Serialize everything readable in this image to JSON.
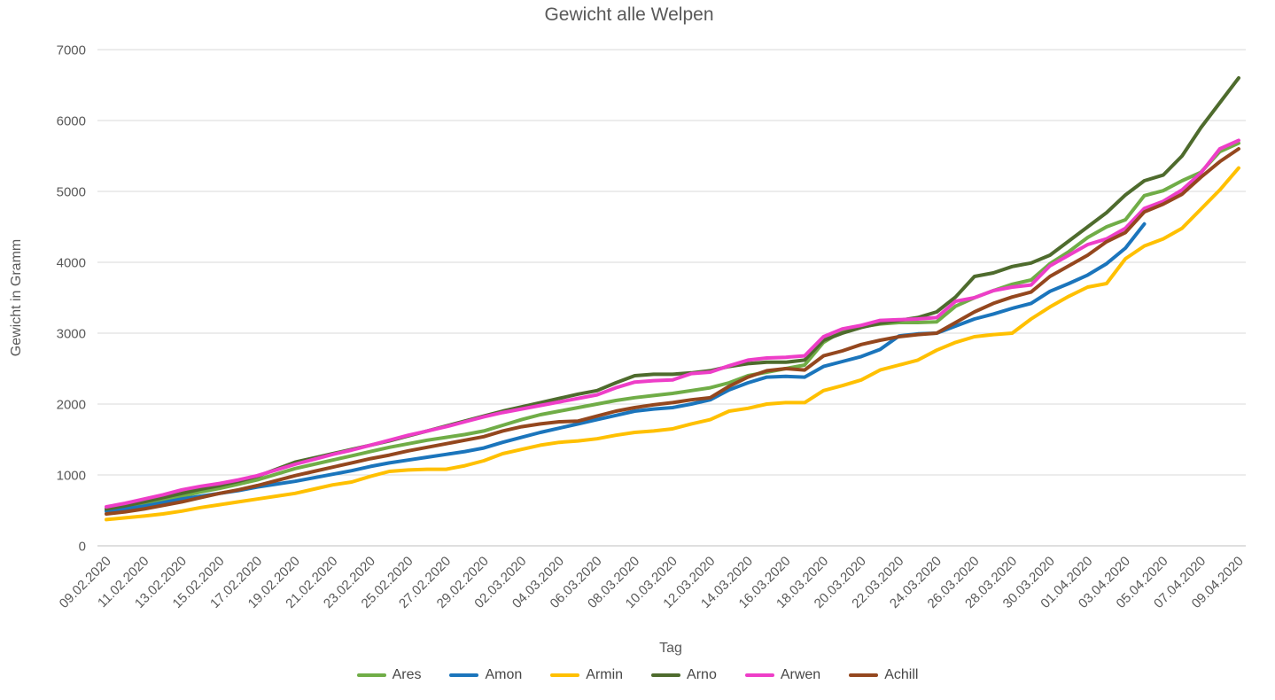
{
  "chart_data": {
    "type": "line",
    "title": "Gewicht alle Welpen",
    "xlabel": "Tag",
    "ylabel": "Gewicht in Gramm",
    "ylim": [
      0,
      7000
    ],
    "grid": "horizontal",
    "legend_position": "bottom",
    "background_color": "#FFFFFF",
    "grid_color": "#D9D9D9",
    "axis_color": "#BFBFBF",
    "text_color": "#595959",
    "y_ticks": [
      {
        "value": 0,
        "label": "0"
      },
      {
        "value": 1000,
        "label": "1000"
      },
      {
        "value": 2000,
        "label": "2000"
      },
      {
        "value": 3000,
        "label": "3000"
      },
      {
        "value": 4000,
        "label": "4000"
      },
      {
        "value": 5000,
        "label": "5000"
      },
      {
        "value": 6000,
        "label": "6000"
      },
      {
        "value": 7000,
        "label": "7000"
      }
    ],
    "x_tick_labels": [
      "09.02.2020",
      "11.02.2020",
      "13.02.2020",
      "15.02.2020",
      "17.02.2020",
      "19.02.2020",
      "21.02.2020",
      "23.02.2020",
      "25.02.2020",
      "27.02.2020",
      "29.02.2020",
      "02.03.2020",
      "04.03.2020",
      "06.03.2020",
      "08.03.2020",
      "10.03.2020",
      "12.03.2020",
      "14.03.2020",
      "16.03.2020",
      "18.03.2020",
      "20.03.2020",
      "22.03.2020",
      "24.03.2020",
      "26.03.2020",
      "28.03.2020",
      "30.03.2020",
      "01.04.2020",
      "03.04.2020",
      "05.04.2020",
      "07.04.2020",
      "09.04.2020"
    ],
    "categories": [
      "09.02.2020",
      "10.02.2020",
      "11.02.2020",
      "12.02.2020",
      "13.02.2020",
      "14.02.2020",
      "15.02.2020",
      "16.02.2020",
      "17.02.2020",
      "18.02.2020",
      "19.02.2020",
      "20.02.2020",
      "21.02.2020",
      "22.02.2020",
      "23.02.2020",
      "24.02.2020",
      "25.02.2020",
      "26.02.2020",
      "27.02.2020",
      "28.02.2020",
      "29.02.2020",
      "01.03.2020",
      "02.03.2020",
      "03.03.2020",
      "04.03.2020",
      "05.03.2020",
      "06.03.2020",
      "07.03.2020",
      "08.03.2020",
      "09.03.2020",
      "10.03.2020",
      "11.03.2020",
      "12.03.2020",
      "13.03.2020",
      "14.03.2020",
      "15.03.2020",
      "16.03.2020",
      "17.03.2020",
      "18.03.2020",
      "19.03.2020",
      "20.03.2020",
      "21.03.2020",
      "22.03.2020",
      "23.03.2020",
      "24.03.2020",
      "25.03.2020",
      "26.03.2020",
      "27.03.2020",
      "28.03.2020",
      "29.03.2020",
      "30.03.2020",
      "31.03.2020",
      "01.04.2020",
      "02.04.2020",
      "03.04.2020",
      "04.04.2020",
      "05.04.2020",
      "06.04.2020",
      "07.04.2020",
      "08.04.2020",
      "09.04.2020"
    ],
    "series": [
      {
        "name": "Ares",
        "color": "#70AD47",
        "values": [
          500,
          540,
          590,
          650,
          700,
          760,
          810,
          870,
          930,
          1010,
          1090,
          1150,
          1210,
          1270,
          1330,
          1390,
          1440,
          1490,
          1530,
          1570,
          1620,
          1700,
          1780,
          1850,
          1900,
          1950,
          2000,
          2050,
          2090,
          2120,
          2150,
          2190,
          2230,
          2300,
          2400,
          2450,
          2500,
          2550,
          2870,
          3030,
          3090,
          3130,
          3150,
          3150,
          3160,
          3380,
          3500,
          3600,
          3690,
          3750,
          3980,
          4150,
          4350,
          4500,
          4600,
          4940,
          5010,
          5150,
          5270,
          5560,
          5680
        ]
      },
      {
        "name": "Amon",
        "color": "#1B75BC",
        "values": [
          490,
          520,
          560,
          610,
          660,
          700,
          740,
          780,
          830,
          870,
          910,
          960,
          1010,
          1060,
          1120,
          1170,
          1210,
          1250,
          1290,
          1330,
          1380,
          1460,
          1530,
          1600,
          1660,
          1720,
          1780,
          1840,
          1900,
          1930,
          1950,
          2000,
          2060,
          2200,
          2300,
          2380,
          2390,
          2380,
          2530,
          2600,
          2670,
          2770,
          2960,
          2990,
          3000,
          3100,
          3200,
          3270,
          3350,
          3420,
          3590,
          3700,
          3820,
          3980,
          4200,
          4540,
          null,
          null,
          null,
          null,
          null
        ]
      },
      {
        "name": "Armin",
        "color": "#FFC000",
        "values": [
          370,
          395,
          420,
          450,
          490,
          540,
          580,
          620,
          660,
          700,
          740,
          800,
          860,
          900,
          980,
          1050,
          1070,
          1080,
          1080,
          1130,
          1200,
          1300,
          1360,
          1420,
          1460,
          1480,
          1510,
          1560,
          1600,
          1620,
          1650,
          1720,
          1780,
          1900,
          1940,
          2000,
          2020,
          2020,
          2190,
          2260,
          2340,
          2480,
          2550,
          2620,
          2760,
          2870,
          2950,
          2980,
          3000,
          3200,
          3370,
          3520,
          3650,
          3700,
          4050,
          4230,
          4330,
          4480,
          4750,
          5020,
          5330
        ]
      },
      {
        "name": "Arno",
        "color": "#4E6B2D",
        "values": [
          520,
          565,
          620,
          680,
          740,
          800,
          850,
          910,
          980,
          1080,
          1180,
          1240,
          1300,
          1360,
          1420,
          1480,
          1550,
          1620,
          1690,
          1760,
          1830,
          1900,
          1960,
          2020,
          2080,
          2140,
          2190,
          2300,
          2400,
          2420,
          2420,
          2440,
          2470,
          2530,
          2570,
          2590,
          2590,
          2620,
          2900,
          3000,
          3080,
          3140,
          3180,
          3220,
          3300,
          3510,
          3800,
          3850,
          3940,
          3990,
          4100,
          4300,
          4500,
          4700,
          4950,
          5150,
          5230,
          5500,
          5900,
          6250,
          6600
        ]
      },
      {
        "name": "Arwen",
        "color": "#EE3EC8",
        "values": [
          550,
          600,
          660,
          720,
          790,
          840,
          880,
          930,
          990,
          1070,
          1150,
          1220,
          1290,
          1350,
          1420,
          1490,
          1560,
          1620,
          1680,
          1750,
          1820,
          1880,
          1930,
          1980,
          2030,
          2080,
          2130,
          2230,
          2310,
          2330,
          2340,
          2430,
          2450,
          2540,
          2620,
          2650,
          2660,
          2680,
          2950,
          3060,
          3110,
          3180,
          3190,
          3200,
          3220,
          3450,
          3500,
          3600,
          3650,
          3680,
          3950,
          4100,
          4250,
          4330,
          4480,
          4760,
          4860,
          5020,
          5260,
          5600,
          5720
        ]
      },
      {
        "name": "Achill",
        "color": "#94471E",
        "values": [
          450,
          480,
          520,
          570,
          620,
          680,
          740,
          790,
          850,
          920,
          990,
          1050,
          1110,
          1170,
          1230,
          1280,
          1340,
          1390,
          1440,
          1490,
          1540,
          1620,
          1680,
          1720,
          1750,
          1760,
          1830,
          1900,
          1950,
          1990,
          2020,
          2060,
          2090,
          2250,
          2380,
          2470,
          2500,
          2480,
          2680,
          2750,
          2840,
          2900,
          2950,
          2980,
          3000,
          3150,
          3300,
          3420,
          3510,
          3580,
          3800,
          3950,
          4100,
          4290,
          4420,
          4710,
          4820,
          4960,
          5200,
          5420,
          5600
        ]
      }
    ]
  }
}
